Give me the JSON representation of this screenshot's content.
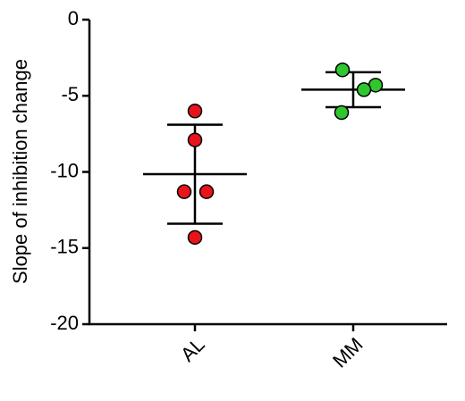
{
  "chart_data": {
    "type": "dot-plot",
    "ylabel": "Slope of inhibition change",
    "categories": [
      "AL",
      "MM"
    ],
    "colors": [
      "#e8131b",
      "#2fc62f"
    ],
    "points": [
      [
        -6.0,
        -7.9,
        -11.3,
        -11.3,
        -14.3
      ],
      [
        -3.3,
        -4.3,
        -4.6,
        -6.1
      ]
    ],
    "mean": [
      -10.15,
      -4.6
    ],
    "sd": [
      3.25,
      1.15
    ],
    "ylim": [
      -20,
      0
    ],
    "yticks": [
      -20,
      -15,
      -10,
      -5,
      0
    ]
  }
}
